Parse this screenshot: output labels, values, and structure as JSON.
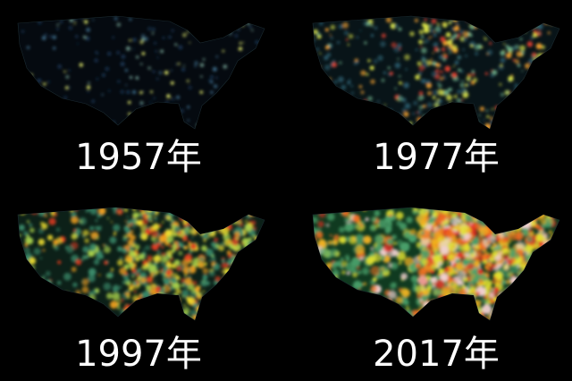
{
  "panels": [
    {
      "label": "1957年"
    },
    {
      "label": "1977年"
    },
    {
      "label": "1997年"
    },
    {
      "label": "2017年"
    }
  ]
}
